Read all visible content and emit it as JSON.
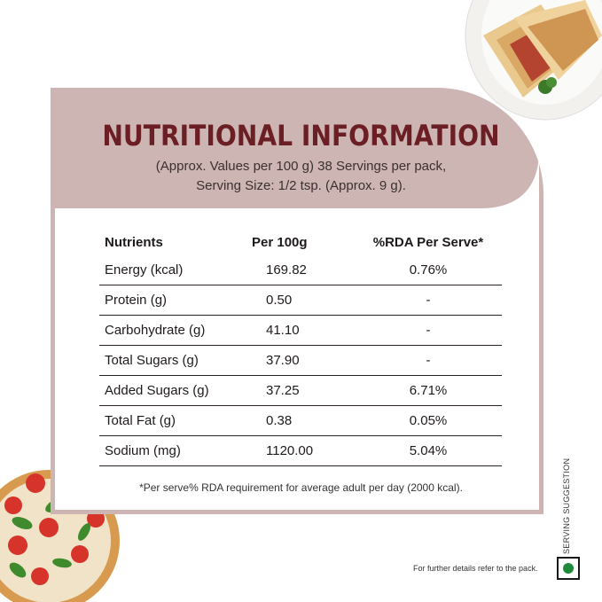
{
  "title": "NUTRITIONAL INFORMATION",
  "subtitle_line1": "(Approx. Values per 100 g) 38 Servings per pack,",
  "subtitle_line2": "Serving Size: 1/2 tsp. (Approx. 9 g).",
  "table": {
    "headers": [
      "Nutrients",
      "Per 100g",
      "%RDA Per Serve*"
    ],
    "rows": [
      [
        "Energy (kcal)",
        "169.82",
        "0.76%"
      ],
      [
        "Protein (g)",
        "0.50",
        "-"
      ],
      [
        "Carbohydrate (g)",
        "41.10",
        "-"
      ],
      [
        "Total Sugars (g)",
        "37.90",
        "-"
      ],
      [
        "Added Sugars (g)",
        "37.25",
        "6.71%"
      ],
      [
        "Total Fat (g)",
        "0.38",
        "0.05%"
      ],
      [
        "Sodium (mg)",
        "1120.00",
        "5.04%"
      ]
    ]
  },
  "footnote": "*Per serve% RDA requirement for average adult per day (2000 kcal).",
  "side_label": "SERVING SUGGESTION",
  "footer_text": "For further details refer to the pack.",
  "colors": {
    "card": "#cdb5b3",
    "title": "#6b1e24",
    "veg": "#1c8a3a"
  },
  "icons": [
    "veg-mark-icon"
  ]
}
